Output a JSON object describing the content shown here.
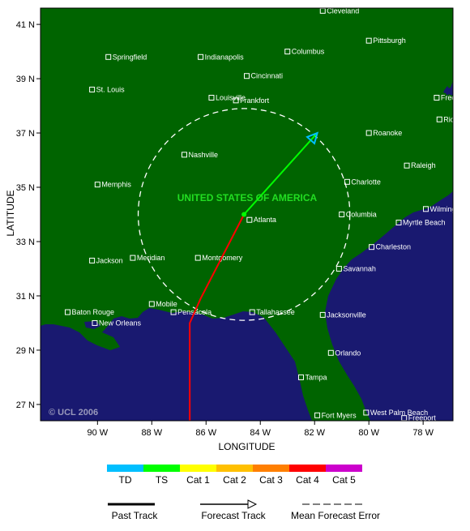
{
  "map": {
    "country_label": "UNITED STATES OF AMERICA",
    "credit": "© UCL 2006",
    "colors": {
      "land": "#006400",
      "ocean": "#191970",
      "frame": "#000000"
    },
    "cities": [
      {
        "name": "Cleveland",
        "lon": -81.7,
        "lat": 41.5
      },
      {
        "name": "Pittsburgh",
        "lon": -80.0,
        "lat": 40.4
      },
      {
        "name": "Columbus",
        "lon": -83.0,
        "lat": 40.0
      },
      {
        "name": "Springfield",
        "lon": -89.6,
        "lat": 39.8
      },
      {
        "name": "Indianapolis",
        "lon": -86.2,
        "lat": 39.8
      },
      {
        "name": "Cincinnati",
        "lon": -84.5,
        "lat": 39.1
      },
      {
        "name": "St. Louis",
        "lon": -90.2,
        "lat": 38.6
      },
      {
        "name": "Louisville",
        "lon": -85.8,
        "lat": 38.3
      },
      {
        "name": "Frankfort",
        "lon": -84.9,
        "lat": 38.2
      },
      {
        "name": "Fredericksburg",
        "lon": -77.5,
        "lat": 38.3
      },
      {
        "name": "Richmond",
        "lon": -77.4,
        "lat": 37.5
      },
      {
        "name": "Roanoke",
        "lon": -80.0,
        "lat": 37.0
      },
      {
        "name": "Nashville",
        "lon": -86.8,
        "lat": 36.2
      },
      {
        "name": "Raleigh",
        "lon": -78.6,
        "lat": 35.8
      },
      {
        "name": "Memphis",
        "lon": -90.0,
        "lat": 35.1
      },
      {
        "name": "Charlotte",
        "lon": -80.8,
        "lat": 35.2
      },
      {
        "name": "Atlanta",
        "lon": -84.4,
        "lat": 33.8
      },
      {
        "name": "Columbia",
        "lon": -81.0,
        "lat": 34.0
      },
      {
        "name": "Wilmington",
        "lon": -77.9,
        "lat": 34.2
      },
      {
        "name": "Myrtle Beach",
        "lon": -78.9,
        "lat": 33.7
      },
      {
        "name": "Charleston",
        "lon": -79.9,
        "lat": 32.8
      },
      {
        "name": "Jackson",
        "lon": -90.2,
        "lat": 32.3
      },
      {
        "name": "Meridian",
        "lon": -88.7,
        "lat": 32.4
      },
      {
        "name": "Montgomery",
        "lon": -86.3,
        "lat": 32.4
      },
      {
        "name": "Savannah",
        "lon": -81.1,
        "lat": 32.0
      },
      {
        "name": "Mobile",
        "lon": -88.0,
        "lat": 30.7
      },
      {
        "name": "Pensacola",
        "lon": -87.2,
        "lat": 30.4
      },
      {
        "name": "Tallahassee",
        "lon": -84.3,
        "lat": 30.4
      },
      {
        "name": "Baton Rouge",
        "lon": -91.1,
        "lat": 30.4
      },
      {
        "name": "Jacksonville",
        "lon": -81.7,
        "lat": 30.3
      },
      {
        "name": "New Orleans",
        "lon": -90.1,
        "lat": 30.0
      },
      {
        "name": "Orlando",
        "lon": -81.4,
        "lat": 28.9
      },
      {
        "name": "Tampa",
        "lon": -82.5,
        "lat": 28.0
      },
      {
        "name": "Fort Myers",
        "lon": -81.9,
        "lat": 26.6
      },
      {
        "name": "West Palm Beach",
        "lon": -80.1,
        "lat": 26.7
      },
      {
        "name": "Freeport",
        "lon": -78.7,
        "lat": 26.5
      }
    ],
    "track": {
      "past": [
        {
          "lon": -86.6,
          "lat": 26.4
        },
        {
          "lon": -86.6,
          "lat": 30.0
        },
        {
          "lon": -86.2,
          "lat": 30.9
        },
        {
          "lon": -84.6,
          "lat": 34.0
        }
      ],
      "forecast": [
        {
          "lon": -84.6,
          "lat": 34.0
        },
        {
          "lon": -81.9,
          "lat": 37.0
        }
      ],
      "error_circle": {
        "lon": -84.6,
        "lat": 34.0,
        "radius_deg": 3.9
      }
    }
  },
  "axes": {
    "xlabel": "LONGITUDE",
    "ylabel": "LATITUDE",
    "x_ticks": [
      {
        "value": -90,
        "label": "90 W"
      },
      {
        "value": -88,
        "label": "88 W"
      },
      {
        "value": -86,
        "label": "86 W"
      },
      {
        "value": -84,
        "label": "84 W"
      },
      {
        "value": -82,
        "label": "82 W"
      },
      {
        "value": -80,
        "label": "80 W"
      },
      {
        "value": -78,
        "label": "78 W"
      }
    ],
    "y_ticks": [
      {
        "value": 41,
        "label": "41 N"
      },
      {
        "value": 39,
        "label": "39 N"
      },
      {
        "value": 37,
        "label": "37 N"
      },
      {
        "value": 35,
        "label": "35 N"
      },
      {
        "value": 33,
        "label": "33 N"
      },
      {
        "value": 31,
        "label": "31 N"
      },
      {
        "value": 29,
        "label": "29 N"
      },
      {
        "value": 27,
        "label": "27 N"
      }
    ],
    "lon_range": [
      -92.1,
      -76.9
    ],
    "lat_range": [
      26.4,
      41.6
    ]
  },
  "legend": {
    "categories": [
      {
        "label": "TD",
        "color": "#00bfff"
      },
      {
        "label": "TS",
        "color": "#00ff00"
      },
      {
        "label": "Cat 1",
        "color": "#ffff00"
      },
      {
        "label": "Cat 2",
        "color": "#ffc000"
      },
      {
        "label": "Cat 3",
        "color": "#ff7f00"
      },
      {
        "label": "Cat 4",
        "color": "#ff0000"
      },
      {
        "label": "Cat 5",
        "color": "#cc00cc"
      }
    ],
    "past_track": "Past Track",
    "forecast_track": "Forecast Track",
    "mean_error": "Mean Forecast Error"
  }
}
